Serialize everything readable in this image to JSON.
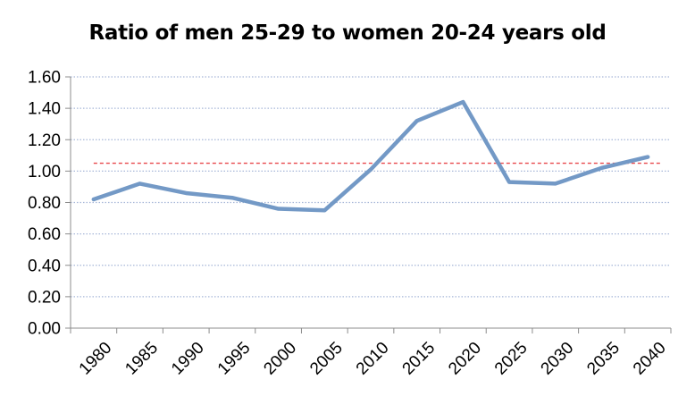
{
  "chart_data": {
    "type": "line",
    "title": "Ratio of men 25-29 to women 20-24 years old",
    "xlabel": "",
    "ylabel": "",
    "categories": [
      "1980",
      "1985",
      "1990",
      "1995",
      "2000",
      "2005",
      "2010",
      "2015",
      "2020",
      "2025",
      "2030",
      "2035",
      "2040"
    ],
    "series": [
      {
        "values": [
          0.82,
          0.92,
          0.86,
          0.83,
          0.76,
          0.75,
          1.01,
          1.32,
          1.44,
          0.93,
          0.92,
          1.02,
          1.09
        ]
      }
    ],
    "reference_line": 1.05,
    "ylim": [
      0,
      1.6
    ],
    "yticks": [
      "0.00",
      "0.20",
      "0.40",
      "0.60",
      "0.80",
      "1.00",
      "1.20",
      "1.40",
      "1.60"
    ],
    "grid": true,
    "legend": "none",
    "colors": {
      "series": "#7399c6",
      "reference_line": "#e8474b",
      "grid": "#a7b7d8",
      "axis": "#8c8c8c"
    }
  }
}
